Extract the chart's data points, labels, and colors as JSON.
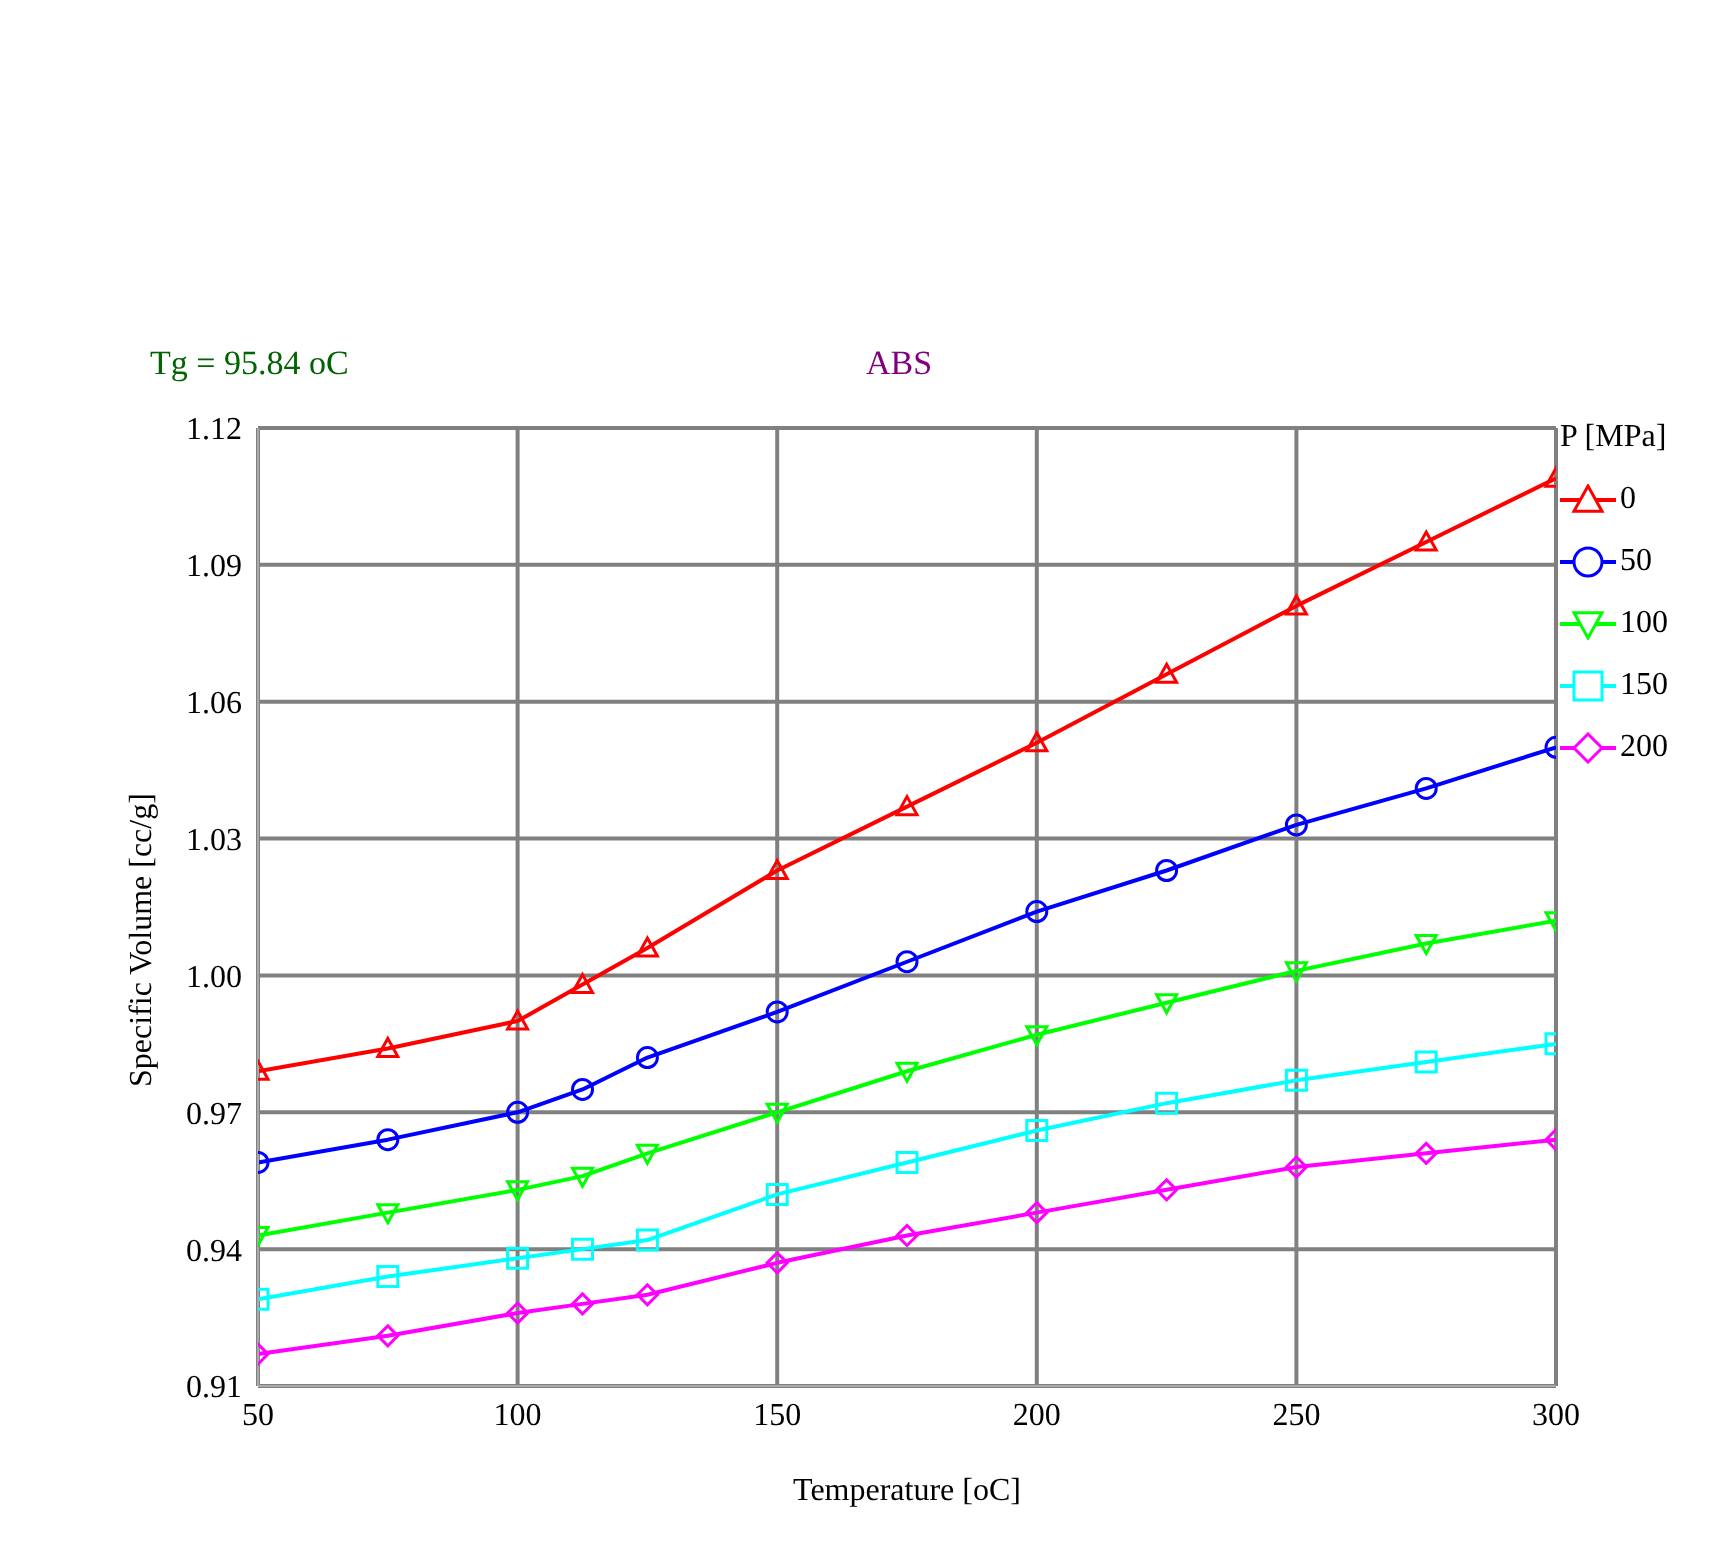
{
  "chart_data": {
    "type": "line",
    "xlabel": "Temperature [oC]",
    "ylabel": "Specific Volume [cc/g]",
    "legend_title": "P [MPa]",
    "annotations": [
      "Tg = 95.84 oC",
      "ABS"
    ],
    "x": [
      50,
      75,
      100,
      112.5,
      125,
      150,
      175,
      200,
      225,
      250,
      275,
      300
    ],
    "xlim": [
      50,
      300
    ],
    "xticks": [
      50,
      100,
      150,
      200,
      250,
      300
    ],
    "ylim": [
      0.91,
      1.12
    ],
    "yticks": [
      0.91,
      0.94,
      0.97,
      {
        "value": 1.0,
        "label": "1.00"
      },
      1.03,
      1.06,
      1.09,
      1.12
    ],
    "grid": true,
    "legend": "right",
    "line_style": "solid",
    "series": [
      {
        "name": "0",
        "color": "#ff0000",
        "marker": "triangle",
        "values": [
          0.979,
          0.984,
          0.99,
          0.998,
          1.006,
          1.023,
          1.037,
          1.051,
          1.066,
          1.081,
          1.095,
          1.109
        ]
      },
      {
        "name": "50",
        "color": "#0000ff",
        "marker": "circle",
        "values": [
          0.959,
          0.964,
          0.97,
          0.975,
          0.982,
          0.992,
          1.003,
          1.014,
          1.023,
          1.033,
          1.041,
          1.05
        ]
      },
      {
        "name": "100",
        "color": "#00ff00",
        "marker": "triangle-down",
        "values": [
          0.943,
          0.948,
          0.953,
          0.956,
          0.961,
          0.97,
          0.979,
          0.987,
          0.994,
          1.001,
          1.007,
          1.012
        ]
      },
      {
        "name": "150",
        "color": "#00ffff",
        "marker": "square",
        "values": [
          0.929,
          0.934,
          0.938,
          0.94,
          0.942,
          0.952,
          0.959,
          0.966,
          0.972,
          0.977,
          0.981,
          0.985
        ]
      },
      {
        "name": "200",
        "color": "#ff00ff",
        "marker": "diamond",
        "values": [
          0.917,
          0.921,
          0.926,
          0.928,
          0.93,
          0.937,
          0.943,
          0.948,
          0.953,
          0.958,
          0.961,
          0.964
        ]
      }
    ]
  }
}
